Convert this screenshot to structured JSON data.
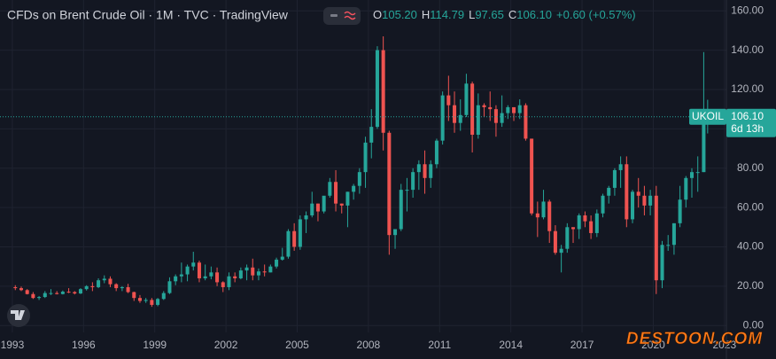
{
  "chart_data": {
    "type": "candlestick",
    "title": "CFDs on Brent Crude Oil · 1M · TVC · TradingView",
    "legend_values": [
      {
        "key": "O",
        "value": "105.20"
      },
      {
        "key": "H",
        "value": "114.79"
      },
      {
        "key": "L",
        "value": "97.65"
      },
      {
        "key": "C",
        "value": "106.10"
      }
    ],
    "change": "+0.60 (+0.57%)",
    "up_color": "#26a69a",
    "down_color": "#ef5350",
    "grid": true,
    "xlim": [
      1992.48,
      2023.08
    ],
    "ylim": [
      -3.5,
      165.5
    ],
    "xticks": [
      1993,
      1996,
      1999,
      2002,
      2005,
      2008,
      2011,
      2014,
      2017,
      2020,
      2023
    ],
    "yticks": [
      {
        "value": 0,
        "label": "0.00"
      },
      {
        "value": 20,
        "label": "20.00"
      },
      {
        "value": 40,
        "label": "40.00"
      },
      {
        "value": 60,
        "label": "60.00"
      },
      {
        "value": 80,
        "label": "80.00"
      },
      {
        "value": 100,
        "label": "100.00"
      },
      {
        "value": 120,
        "label": "120.00"
      },
      {
        "value": 140,
        "label": "140.00"
      },
      {
        "value": 160,
        "label": "160.00"
      }
    ],
    "x": [
      1993.125,
      1993.375,
      1993.625,
      1993.875,
      1994.125,
      1994.375,
      1994.625,
      1994.875,
      1995.125,
      1995.375,
      1995.625,
      1995.875,
      1996.125,
      1996.375,
      1996.625,
      1996.875,
      1997.125,
      1997.375,
      1997.625,
      1997.875,
      1998.125,
      1998.375,
      1998.625,
      1998.875,
      1999.125,
      1999.375,
      1999.625,
      1999.875,
      2000.125,
      2000.375,
      2000.625,
      2000.875,
      2001.125,
      2001.375,
      2001.625,
      2001.875,
      2002.125,
      2002.375,
      2002.625,
      2002.875,
      2003.125,
      2003.375,
      2003.625,
      2003.875,
      2004.125,
      2004.375,
      2004.625,
      2004.875,
      2005.125,
      2005.375,
      2005.625,
      2005.875,
      2006.125,
      2006.375,
      2006.625,
      2006.875,
      2007.125,
      2007.375,
      2007.625,
      2007.875,
      2008.125,
      2008.375,
      2008.625,
      2008.875,
      2009.125,
      2009.375,
      2009.625,
      2009.875,
      2010.125,
      2010.375,
      2010.625,
      2010.875,
      2011.125,
      2011.375,
      2011.625,
      2011.875,
      2012.125,
      2012.375,
      2012.625,
      2012.875,
      2013.125,
      2013.375,
      2013.625,
      2013.875,
      2014.125,
      2014.375,
      2014.625,
      2014.875,
      2015.125,
      2015.375,
      2015.625,
      2015.875,
      2016.125,
      2016.375,
      2016.625,
      2016.875,
      2017.125,
      2017.375,
      2017.625,
      2017.875,
      2018.125,
      2018.375,
      2018.625,
      2018.875,
      2019.125,
      2019.375,
      2019.625,
      2019.875,
      2020.125,
      2020.375,
      2020.625,
      2020.875,
      2021.125,
      2021.375,
      2021.625,
      2021.875,
      2022.125,
      2022.29
    ],
    "ohlc": [
      [
        19.5,
        20.5,
        18,
        19
      ],
      [
        19,
        19.8,
        17.5,
        18
      ],
      [
        18,
        18.5,
        15.8,
        16
      ],
      [
        16,
        17,
        13.5,
        14
      ],
      [
        14,
        15,
        13,
        14.5
      ],
      [
        14.5,
        17.5,
        14,
        16.5
      ],
      [
        16.5,
        18.5,
        15.5,
        16.5
      ],
      [
        16.5,
        17.5,
        15.8,
        16
      ],
      [
        16,
        17.8,
        15.8,
        17.2
      ],
      [
        17.2,
        19,
        16.5,
        17
      ],
      [
        17,
        17.5,
        15.8,
        16.3
      ],
      [
        16.3,
        19,
        16,
        18.5
      ],
      [
        18.5,
        20.5,
        17.8,
        20
      ],
      [
        20,
        22,
        17.5,
        19.5
      ],
      [
        19.5,
        24,
        19,
        23
      ],
      [
        23,
        25.5,
        21.5,
        23.8
      ],
      [
        23.8,
        25,
        19.5,
        21
      ],
      [
        21,
        21.5,
        17.5,
        19
      ],
      [
        19,
        20,
        17.5,
        19.5
      ],
      [
        19.5,
        21.2,
        16.5,
        17
      ],
      [
        17,
        17.2,
        12.5,
        14
      ],
      [
        14,
        15.5,
        11.5,
        12.5
      ],
      [
        12.5,
        14,
        11.5,
        13
      ],
      [
        13,
        14,
        9.5,
        10.5
      ],
      [
        10.5,
        14,
        9.8,
        13.5
      ],
      [
        13.5,
        17.5,
        13,
        16.5
      ],
      [
        16.5,
        24.5,
        16,
        22.5
      ],
      [
        22.5,
        26,
        20.5,
        25
      ],
      [
        25,
        32,
        22,
        26
      ],
      [
        26,
        31,
        22.5,
        30
      ],
      [
        30,
        37.5,
        28,
        32
      ],
      [
        32,
        33,
        22,
        24
      ],
      [
        24,
        31,
        23,
        25
      ],
      [
        25,
        30,
        23.5,
        27
      ],
      [
        27,
        29.5,
        20,
        22
      ],
      [
        22,
        22.5,
        17,
        19.5
      ],
      [
        19.5,
        27,
        18,
        25
      ],
      [
        25,
        27,
        22,
        24
      ],
      [
        24,
        29.5,
        23.5,
        28
      ],
      [
        28,
        31,
        23,
        29.5
      ],
      [
        29.5,
        34,
        23,
        25.5
      ],
      [
        25.5,
        29,
        23,
        27.5
      ],
      [
        27.5,
        31,
        25,
        27
      ],
      [
        27,
        31,
        27,
        30
      ],
      [
        30,
        34.5,
        29,
        33.5
      ],
      [
        33.5,
        39.5,
        33,
        35
      ],
      [
        35,
        49,
        34,
        48
      ],
      [
        48,
        52,
        38,
        40
      ],
      [
        40,
        56,
        38.5,
        54
      ],
      [
        54,
        58,
        47,
        56
      ],
      [
        56,
        68,
        55,
        62
      ],
      [
        62,
        62,
        53,
        58
      ],
      [
        58,
        65,
        57,
        66
      ],
      [
        66,
        75,
        65,
        73
      ],
      [
        73,
        79,
        58,
        62
      ],
      [
        62,
        62,
        57,
        61
      ],
      [
        61,
        68,
        50,
        68
      ],
      [
        68,
        72,
        64,
        71
      ],
      [
        71,
        80,
        67,
        78
      ],
      [
        78,
        96,
        70,
        93
      ],
      [
        93,
        110,
        85,
        101
      ],
      [
        101,
        142,
        100,
        140
      ],
      [
        140,
        147,
        89,
        98
      ],
      [
        98,
        99,
        36,
        46
      ],
      [
        46,
        49,
        39,
        49
      ],
      [
        49,
        72,
        48,
        69
      ],
      [
        69,
        75,
        58,
        69
      ],
      [
        69,
        80,
        65,
        78
      ],
      [
        78,
        84,
        69,
        82
      ],
      [
        82,
        89,
        67,
        75
      ],
      [
        75,
        84,
        70,
        82
      ],
      [
        82,
        95,
        80,
        94
      ],
      [
        94,
        119,
        92,
        117
      ],
      [
        117,
        127,
        104,
        112
      ],
      [
        112,
        119,
        98,
        103
      ],
      [
        103,
        115,
        99,
        107
      ],
      [
        107,
        128,
        106,
        123
      ],
      [
        123,
        124,
        88,
        97
      ],
      [
        97,
        118,
        95,
        112
      ],
      [
        112,
        113,
        106,
        111
      ],
      [
        111,
        119,
        104,
        110
      ],
      [
        110,
        112,
        96,
        103
      ],
      [
        103,
        117,
        101,
        108
      ],
      [
        108,
        112,
        105,
        111
      ],
      [
        111,
        111,
        104,
        108
      ],
      [
        108,
        115,
        105,
        112
      ],
      [
        112,
        113,
        94,
        95
      ],
      [
        95,
        95,
        56,
        57
      ],
      [
        57,
        63,
        45,
        55
      ],
      [
        55,
        69,
        54,
        63
      ],
      [
        63,
        64,
        42,
        48
      ],
      [
        48,
        51,
        36,
        37
      ],
      [
        37,
        41,
        27,
        39
      ],
      [
        39,
        52,
        37,
        50
      ],
      [
        50,
        50,
        42,
        49
      ],
      [
        49,
        57,
        44,
        56
      ],
      [
        56,
        58,
        50,
        53
      ],
      [
        53,
        56,
        44,
        47
      ],
      [
        47,
        59,
        45,
        57
      ],
      [
        57,
        67,
        55,
        66
      ],
      [
        66,
        71,
        62,
        70
      ],
      [
        70,
        80,
        66,
        79
      ],
      [
        79,
        86,
        70,
        82
      ],
      [
        82,
        86,
        50,
        54
      ],
      [
        54,
        69,
        52,
        68
      ],
      [
        68,
        75,
        60,
        66
      ],
      [
        66,
        71,
        56,
        61
      ],
      [
        61,
        69,
        56,
        66
      ],
      [
        66,
        71,
        16,
        23
      ],
      [
        23,
        43,
        19,
        41
      ],
      [
        41,
        46,
        38,
        41
      ],
      [
        41,
        52,
        36,
        52
      ],
      [
        52,
        71,
        50,
        64
      ],
      [
        64,
        76,
        60,
        75
      ],
      [
        75,
        80,
        65,
        78
      ],
      [
        78,
        86,
        68,
        78
      ],
      [
        78,
        139,
        78,
        107
      ],
      [
        105.2,
        114.79,
        97.65,
        106.1
      ]
    ],
    "price_tag": {
      "symbol": "UKOIL",
      "price": {
        "value": 106.1,
        "label": "106.10"
      },
      "countdown": "6d 13h"
    },
    "watermark": "DESTOON.COM"
  }
}
